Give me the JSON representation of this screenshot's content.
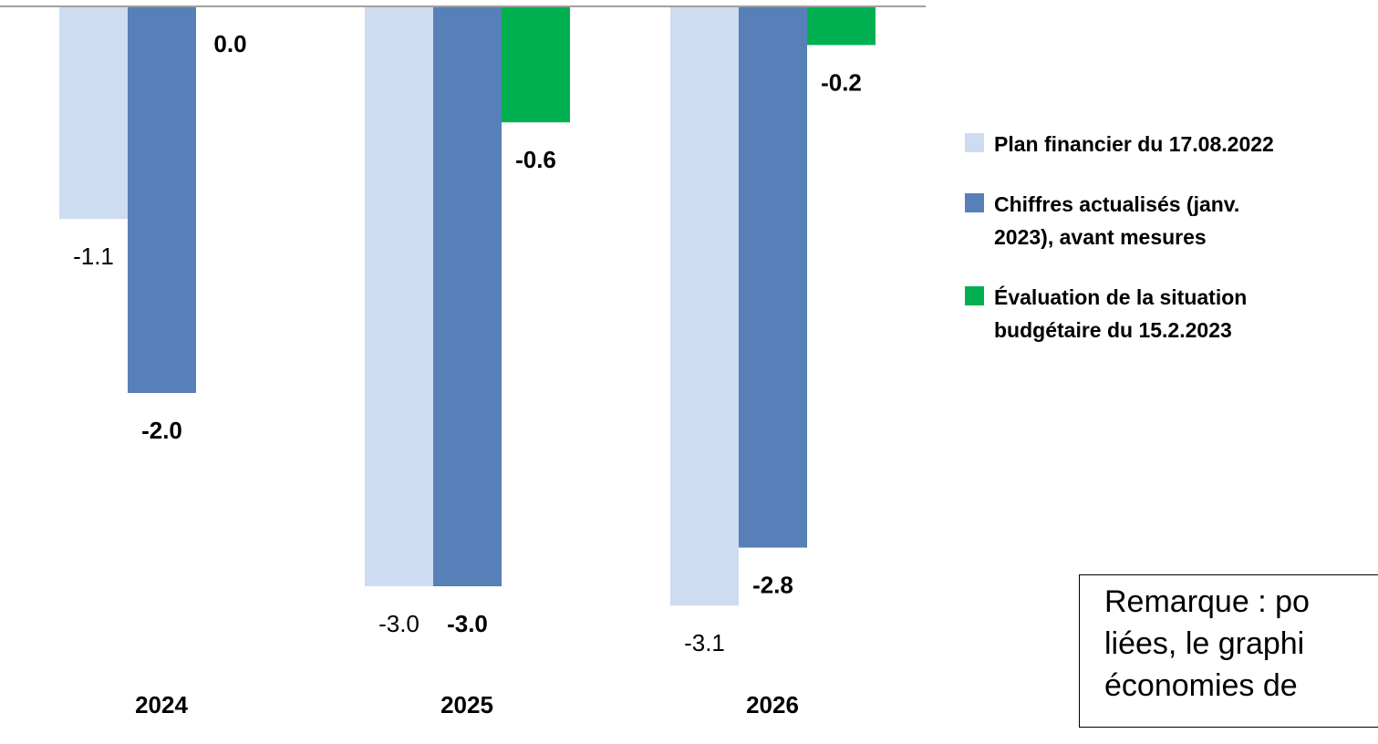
{
  "chart_data": {
    "type": "bar",
    "categories": [
      "2024",
      "2025",
      "2026"
    ],
    "series": [
      {
        "name": "Plan financier du 17.08.2022",
        "color": "#cddcf0",
        "values": [
          -1.1,
          -3.0,
          -3.1
        ],
        "value_labels": [
          "-1.1",
          "-3.0",
          "-3.1"
        ]
      },
      {
        "name": "Chiffres actualisés (janv. 2023), avant mesures",
        "color": "#577fb8",
        "values": [
          -2.0,
          -3.0,
          -2.8
        ],
        "value_labels": [
          "-2.0",
          "-3.0",
          "-2.8"
        ]
      },
      {
        "name": "Évaluation de la situation budgétaire du 15.2.2023",
        "color": "#00b050",
        "values": [
          0.0,
          -0.6,
          -0.2
        ],
        "value_labels": [
          "0.0",
          "-0.6",
          "-0.2"
        ]
      }
    ],
    "note": [
      "Remarque : po",
      "liées, le graphi",
      "économies de"
    ]
  }
}
